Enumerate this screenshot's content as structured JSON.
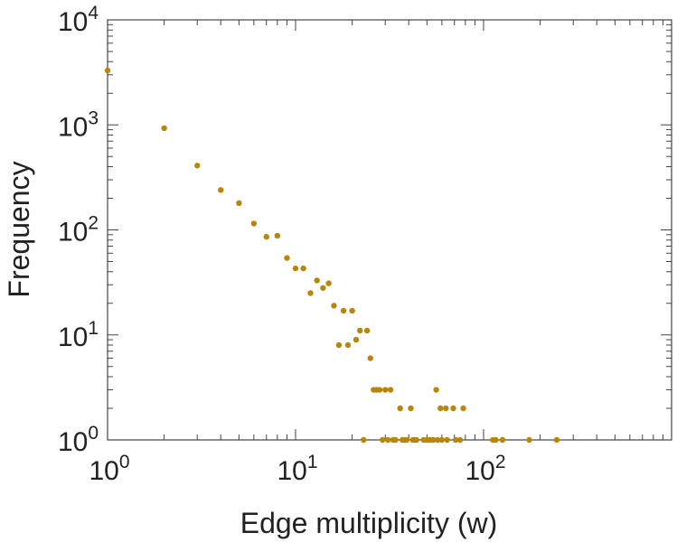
{
  "chart_data": {
    "type": "scatter",
    "title": "",
    "xlabel": "Edge multiplicity (w)",
    "ylabel": "Frequency",
    "xscale": "log",
    "yscale": "log",
    "xlim": [
      1,
      1000
    ],
    "ylim": [
      1,
      10000
    ],
    "grid": false,
    "marker_color": "#b8860b",
    "x_ticks": [
      {
        "base": "10",
        "exp": "0",
        "value": 1
      },
      {
        "base": "10",
        "exp": "1",
        "value": 10
      },
      {
        "base": "10",
        "exp": "2",
        "value": 100
      }
    ],
    "y_ticks": [
      {
        "base": "10",
        "exp": "0",
        "value": 1
      },
      {
        "base": "10",
        "exp": "1",
        "value": 10
      },
      {
        "base": "10",
        "exp": "2",
        "value": 100
      },
      {
        "base": "10",
        "exp": "3",
        "value": 1000
      },
      {
        "base": "10",
        "exp": "4",
        "value": 10000
      }
    ],
    "series": [
      {
        "name": "Edge multiplicity",
        "points": [
          [
            1,
            3300
          ],
          [
            2,
            930
          ],
          [
            3,
            410
          ],
          [
            4,
            240
          ],
          [
            5,
            180
          ],
          [
            6,
            115
          ],
          [
            7,
            86
          ],
          [
            8,
            88
          ],
          [
            9,
            54
          ],
          [
            10,
            43
          ],
          [
            11,
            43
          ],
          [
            12,
            25
          ],
          [
            13,
            33
          ],
          [
            14,
            28
          ],
          [
            15,
            31
          ],
          [
            16,
            19
          ],
          [
            17,
            8
          ],
          [
            18,
            17
          ],
          [
            19,
            8
          ],
          [
            20,
            17
          ],
          [
            21,
            9
          ],
          [
            22,
            11
          ],
          [
            23,
            1
          ],
          [
            24,
            11
          ],
          [
            25,
            6
          ],
          [
            26,
            3
          ],
          [
            27,
            3
          ],
          [
            28,
            3
          ],
          [
            29,
            1
          ],
          [
            30,
            3
          ],
          [
            31,
            1
          ],
          [
            32,
            3
          ],
          [
            33,
            1
          ],
          [
            34,
            1
          ],
          [
            36,
            2
          ],
          [
            37,
            1
          ],
          [
            38,
            1
          ],
          [
            39,
            1
          ],
          [
            41,
            2
          ],
          [
            42,
            1
          ],
          [
            43,
            1
          ],
          [
            44,
            1
          ],
          [
            48,
            1
          ],
          [
            50,
            1
          ],
          [
            52,
            1
          ],
          [
            54,
            1
          ],
          [
            56,
            3
          ],
          [
            57,
            1
          ],
          [
            59,
            2
          ],
          [
            60,
            1
          ],
          [
            63,
            2
          ],
          [
            64,
            1
          ],
          [
            69,
            2
          ],
          [
            71,
            1
          ],
          [
            75,
            1
          ],
          [
            78,
            2
          ],
          [
            112,
            1
          ],
          [
            116,
            1
          ],
          [
            126,
            1
          ],
          [
            175,
            1
          ],
          [
            245,
            1
          ]
        ]
      }
    ]
  }
}
